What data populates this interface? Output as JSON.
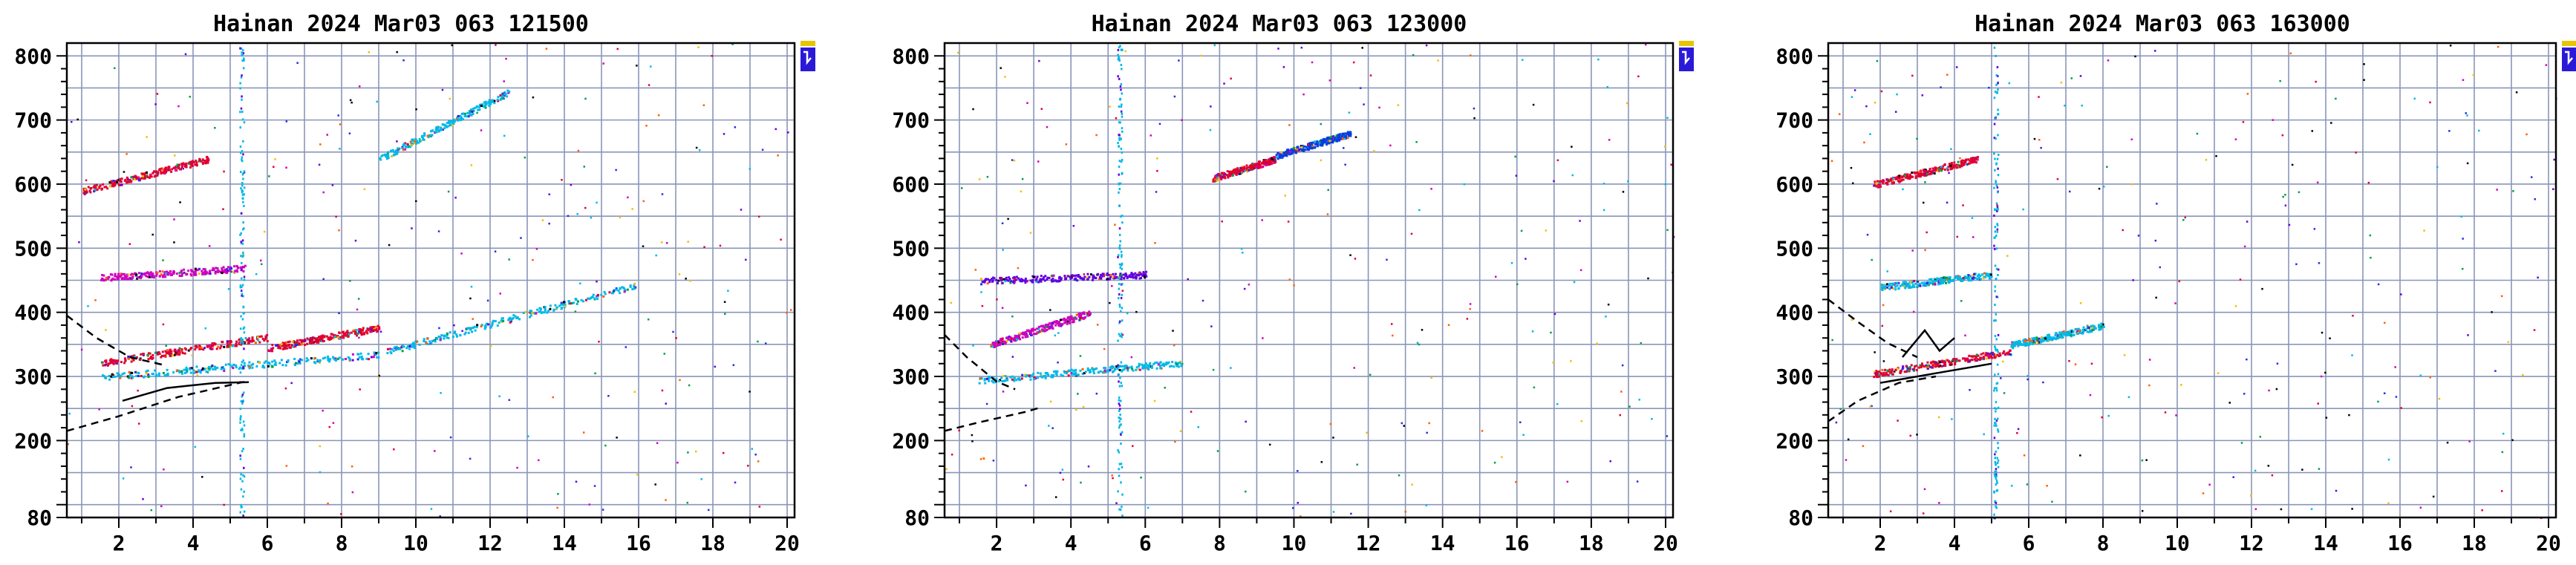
{
  "accent_colors": {
    "grid": "#8a96b8",
    "frame": "#000000",
    "marker_blue": "#2a1ad8",
    "marker_yellow": "#e8c400"
  },
  "chart_data": [
    {
      "type": "scatter",
      "title": "Hainan 2024 Mar03 063 121500",
      "xlabel": "",
      "ylabel": "",
      "xlim": [
        0.6,
        20.2
      ],
      "ylim": [
        80,
        820
      ],
      "x_ticks": [
        2,
        4,
        6,
        8,
        10,
        12,
        14,
        16,
        18,
        20
      ],
      "y_ticks": [
        80,
        200,
        300,
        400,
        500,
        600,
        700,
        800
      ],
      "grid": true,
      "traces": [
        {
          "x0": 1.5,
          "y0": 322,
          "x1": 6.0,
          "y1": 362,
          "color": "#e00030"
        },
        {
          "x0": 6.0,
          "y0": 345,
          "x1": 9.0,
          "y1": 377,
          "color": "#e00030"
        },
        {
          "x0": 1.5,
          "y0": 300,
          "x1": 9.0,
          "y1": 335,
          "color": "#00b8e8"
        },
        {
          "x0": 9.2,
          "y0": 340,
          "x1": 15.9,
          "y1": 443,
          "color": "#00b8e8"
        },
        {
          "x0": 1.0,
          "y0": 590,
          "x1": 4.4,
          "y1": 640,
          "color": "#e00030"
        },
        {
          "x0": 1.5,
          "y0": 455,
          "x1": 5.4,
          "y1": 470,
          "color": "#d000c0"
        },
        {
          "x0": 9.0,
          "y0": 640,
          "x1": 12.5,
          "y1": 745,
          "color": "#00b8e8"
        }
      ],
      "vertical_bands": [
        5.3
      ],
      "curves": [
        {
          "style": "dashed",
          "points": [
            [
              0.6,
              215
            ],
            [
              2.0,
              238
            ],
            [
              3.6,
              268
            ],
            [
              5.4,
              292
            ]
          ]
        },
        {
          "style": "dashed",
          "points": [
            [
              0.6,
              395
            ],
            [
              1.4,
              360
            ],
            [
              2.3,
              330
            ],
            [
              3.2,
              318
            ]
          ]
        },
        {
          "style": "solid",
          "points": [
            [
              2.1,
              262
            ],
            [
              3.3,
              282
            ],
            [
              4.6,
              290
            ],
            [
              5.5,
              291
            ]
          ]
        }
      ],
      "legend_marker": "top-right"
    },
    {
      "type": "scatter",
      "title": "Hainan 2024 Mar03 063 123000",
      "xlabel": "",
      "ylabel": "",
      "xlim": [
        0.6,
        20.2
      ],
      "ylim": [
        80,
        820
      ],
      "x_ticks": [
        2,
        4,
        6,
        8,
        10,
        12,
        14,
        16,
        18,
        20
      ],
      "y_ticks": [
        80,
        200,
        300,
        400,
        500,
        600,
        700,
        800
      ],
      "grid": true,
      "traces": [
        {
          "x0": 1.5,
          "y0": 295,
          "x1": 7.0,
          "y1": 322,
          "color": "#00b8e8"
        },
        {
          "x0": 1.5,
          "y0": 450,
          "x1": 6.0,
          "y1": 460,
          "color": "#6000e0"
        },
        {
          "x0": 7.8,
          "y0": 610,
          "x1": 9.5,
          "y1": 640,
          "color": "#e00030"
        },
        {
          "x0": 9.5,
          "y0": 645,
          "x1": 11.5,
          "y1": 680,
          "color": "#0040e0"
        },
        {
          "x0": 1.8,
          "y0": 350,
          "x1": 4.5,
          "y1": 400,
          "color": "#d000c0"
        }
      ],
      "vertical_bands": [
        5.3
      ],
      "curves": [
        {
          "style": "dashed",
          "points": [
            [
              0.6,
              215
            ],
            [
              1.5,
              228
            ],
            [
              2.8,
              245
            ],
            [
              3.2,
              252
            ]
          ]
        },
        {
          "style": "dashed",
          "points": [
            [
              0.6,
              365
            ],
            [
              1.2,
              330
            ],
            [
              2.0,
              292
            ],
            [
              2.5,
              280
            ]
          ]
        }
      ],
      "legend_marker": "top-right"
    },
    {
      "type": "scatter",
      "title": "Hainan 2024 Mar03 063 163000",
      "xlabel": "",
      "ylabel": "",
      "xlim": [
        0.6,
        20.2
      ],
      "ylim": [
        80,
        820
      ],
      "x_ticks": [
        2,
        4,
        6,
        8,
        10,
        12,
        14,
        16,
        18,
        20
      ],
      "y_ticks": [
        80,
        200,
        300,
        400,
        500,
        600,
        700,
        800
      ],
      "grid": true,
      "traces": [
        {
          "x0": 1.8,
          "y0": 600,
          "x1": 4.6,
          "y1": 640,
          "color": "#e00030"
        },
        {
          "x0": 1.8,
          "y0": 305,
          "x1": 5.5,
          "y1": 340,
          "color": "#e00030"
        },
        {
          "x0": 5.5,
          "y0": 350,
          "x1": 8.0,
          "y1": 380,
          "color": "#00b8e8"
        },
        {
          "x0": 2.0,
          "y0": 440,
          "x1": 5.0,
          "y1": 460,
          "color": "#00b8e8"
        }
      ],
      "vertical_bands": [
        5.1
      ],
      "curves": [
        {
          "style": "dashed",
          "points": [
            [
              0.6,
              230
            ],
            [
              1.4,
              262
            ],
            [
              2.5,
              290
            ],
            [
              3.5,
              300
            ]
          ]
        },
        {
          "style": "dashed",
          "points": [
            [
              0.6,
              420
            ],
            [
              1.4,
              385
            ],
            [
              2.2,
              352
            ],
            [
              3.0,
              330
            ]
          ]
        },
        {
          "style": "solid",
          "points": [
            [
              2.0,
              290
            ],
            [
              3.5,
              305
            ],
            [
              5.0,
              320
            ]
          ]
        },
        {
          "style": "solid",
          "points": [
            [
              2.6,
              330
            ],
            [
              3.2,
              372
            ],
            [
              3.6,
              340
            ],
            [
              4.0,
              360
            ]
          ]
        }
      ],
      "legend_marker": "top-right"
    }
  ]
}
